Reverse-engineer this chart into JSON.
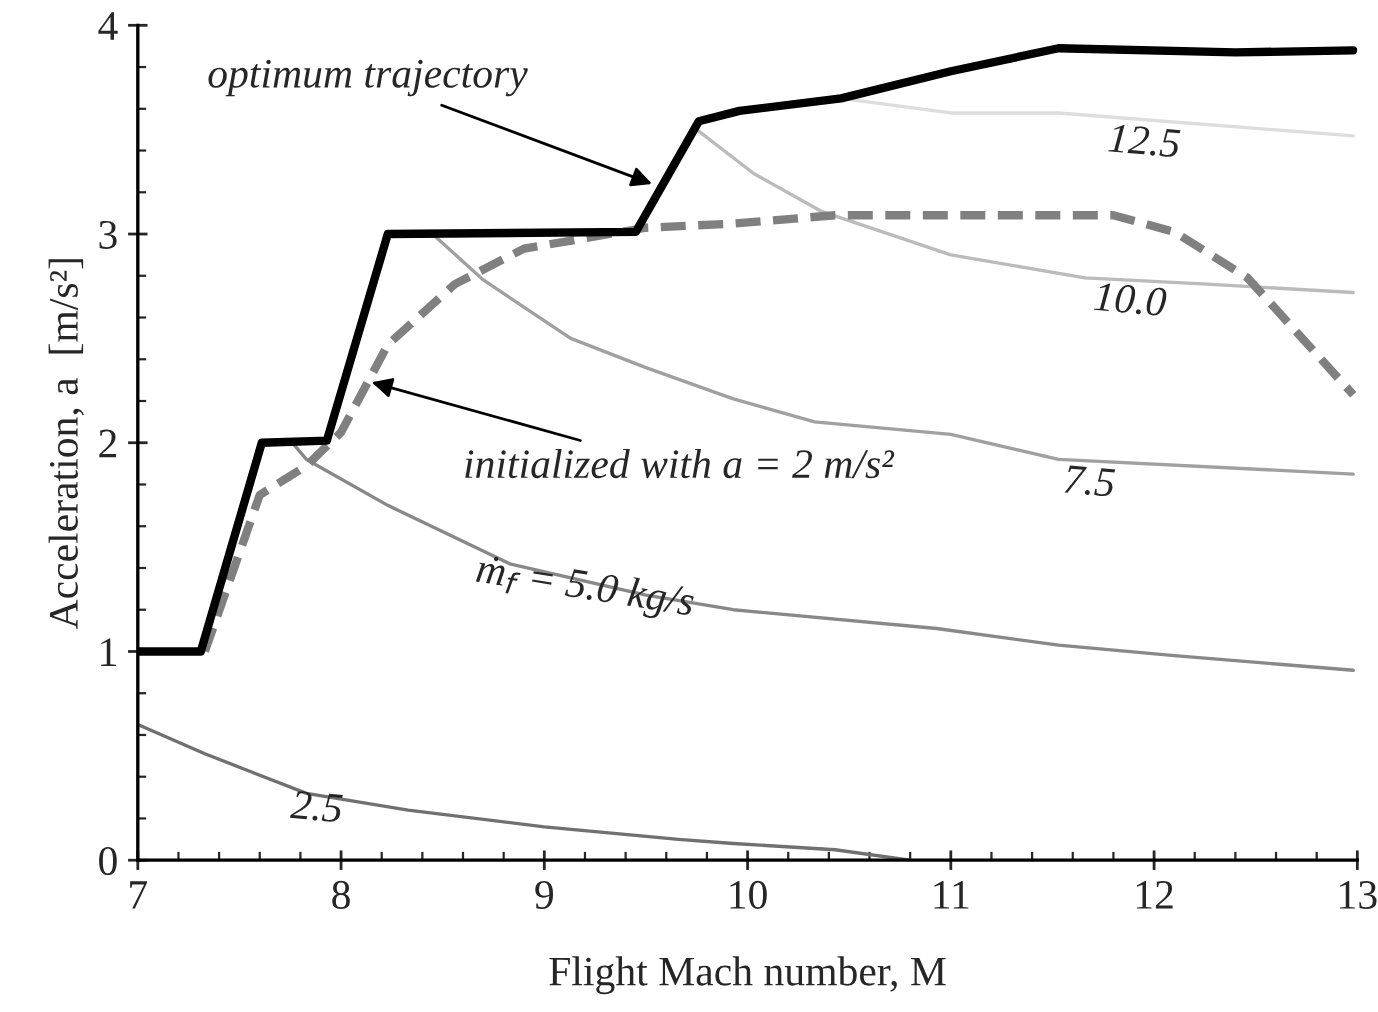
{
  "chart_data": {
    "type": "line",
    "xlabel": "Flight Mach number, M",
    "ylabel": "Acceleration, a  [m/s²]",
    "xlim": [
      7,
      13
    ],
    "ylim": [
      0,
      4
    ],
    "xticks": [
      7,
      {
        "value": 7.2,
        "label": null
      },
      {
        "value": 7.4,
        "label": null
      },
      {
        "value": 7.6,
        "label": null
      },
      {
        "value": 7.8,
        "label": null
      },
      8,
      {
        "value": 8.2,
        "label": null
      },
      {
        "value": 8.4,
        "label": null
      },
      {
        "value": 8.6,
        "label": null
      },
      {
        "value": 8.8,
        "label": null
      },
      9,
      {
        "value": 9.2,
        "label": null
      },
      {
        "value": 9.4,
        "label": null
      },
      {
        "value": 9.6,
        "label": null
      },
      {
        "value": 9.8,
        "label": null
      },
      10,
      {
        "value": 10.2,
        "label": null
      },
      {
        "value": 10.4,
        "label": null
      },
      {
        "value": 10.6,
        "label": null
      },
      {
        "value": 10.8,
        "label": null
      },
      11,
      {
        "value": 11.2,
        "label": null
      },
      {
        "value": 11.4,
        "label": null
      },
      {
        "value": 11.6,
        "label": null
      },
      {
        "value": 11.8,
        "label": null
      },
      12,
      {
        "value": 12.2,
        "label": null
      },
      {
        "value": 12.4,
        "label": null
      },
      {
        "value": 12.6,
        "label": null
      },
      {
        "value": 12.8,
        "label": null
      },
      13
    ],
    "yticks": [
      0,
      {
        "value": 0.2,
        "label": null
      },
      {
        "value": 0.4,
        "label": null
      },
      {
        "value": 0.6,
        "label": null
      },
      {
        "value": 0.8,
        "label": null
      },
      1,
      {
        "value": 1.2,
        "label": null
      },
      {
        "value": 1.4,
        "label": null
      },
      {
        "value": 1.6,
        "label": null
      },
      {
        "value": 1.8,
        "label": null
      },
      2,
      {
        "value": 2.2,
        "label": null
      },
      {
        "value": 2.4,
        "label": null
      },
      {
        "value": 2.6,
        "label": null
      },
      {
        "value": 2.8,
        "label": null
      },
      3,
      {
        "value": 3.2,
        "label": null
      },
      {
        "value": 3.4,
        "label": null
      },
      {
        "value": 3.6,
        "label": null
      },
      {
        "value": 3.8,
        "label": null
      },
      4
    ],
    "grid": false,
    "legend": false,
    "marker": "none",
    "series": [
      {
        "name": "12.5",
        "color": "#dddddd",
        "x": [
          10.4,
          10.46,
          11.0,
          11.53,
          12.98
        ],
        "values": [
          3.65,
          3.65,
          3.58,
          3.58,
          3.47
        ]
      },
      {
        "name": "10.0",
        "color": "#bbbbbb",
        "x": [
          9.75,
          10.03,
          10.36,
          11.0,
          11.66,
          12.26,
          12.98
        ],
        "values": [
          3.5,
          3.29,
          3.11,
          2.9,
          2.79,
          2.76,
          2.72
        ]
      },
      {
        "name": "7.5",
        "color": "#a0a0a0",
        "x": [
          8.45,
          8.7,
          9.13,
          9.5,
          9.93,
          10.33,
          11.0,
          11.53,
          12.98
        ],
        "values": [
          3.0,
          2.78,
          2.5,
          2.36,
          2.21,
          2.1,
          2.04,
          1.92,
          1.85
        ]
      },
      {
        "name": "ṁ$_{f}$ = 5.0 kg/s",
        "color": "#888888",
        "x": [
          7.76,
          7.83,
          8.23,
          8.83,
          9.5,
          9.93,
          10.93,
          11.53,
          12.1,
          12.98
        ],
        "values": [
          2.0,
          1.92,
          1.7,
          1.42,
          1.27,
          1.2,
          1.11,
          1.03,
          0.98,
          0.91
        ]
      },
      {
        "name": "2.5",
        "color": "#707070",
        "x": [
          7.0,
          7.33,
          7.83,
          8.33,
          9.0,
          9.66,
          9.93,
          10.43,
          10.8
        ],
        "values": [
          0.65,
          0.51,
          0.32,
          0.24,
          0.16,
          0.1,
          0.08,
          0.05,
          0.0
        ]
      },
      {
        "color": "#808080",
        "line_style": "dashed",
        "x": [
          7.33,
          7.6,
          7.83,
          8.0,
          8.23,
          8.56,
          8.9,
          9.5,
          9.93,
          10.43,
          11.8,
          12.1,
          12.46,
          12.98
        ],
        "values": [
          1.0,
          1.75,
          1.89,
          2.05,
          2.47,
          2.76,
          2.93,
          3.03,
          3.05,
          3.09,
          3.09,
          3.01,
          2.79,
          2.23
        ]
      },
      {
        "color": "#000000",
        "x": [
          7.0,
          7.31,
          7.61,
          7.93,
          8.23,
          9.45,
          9.76,
          9.96,
          10.46,
          11.0,
          11.53,
          12.4,
          12.98
        ],
        "values": [
          1.0,
          1.0,
          2.0,
          2.01,
          3.0,
          3.01,
          3.54,
          3.59,
          3.65,
          3.78,
          3.89,
          3.87,
          3.88
        ]
      }
    ],
    "annotations": [
      {
        "text": "optimum trajectory",
        "x": 9.53,
        "y": 3.24
      },
      {
        "text": "initialized with a = 2 m/s²",
        "x": 8.15,
        "y": 2.29
      }
    ]
  }
}
